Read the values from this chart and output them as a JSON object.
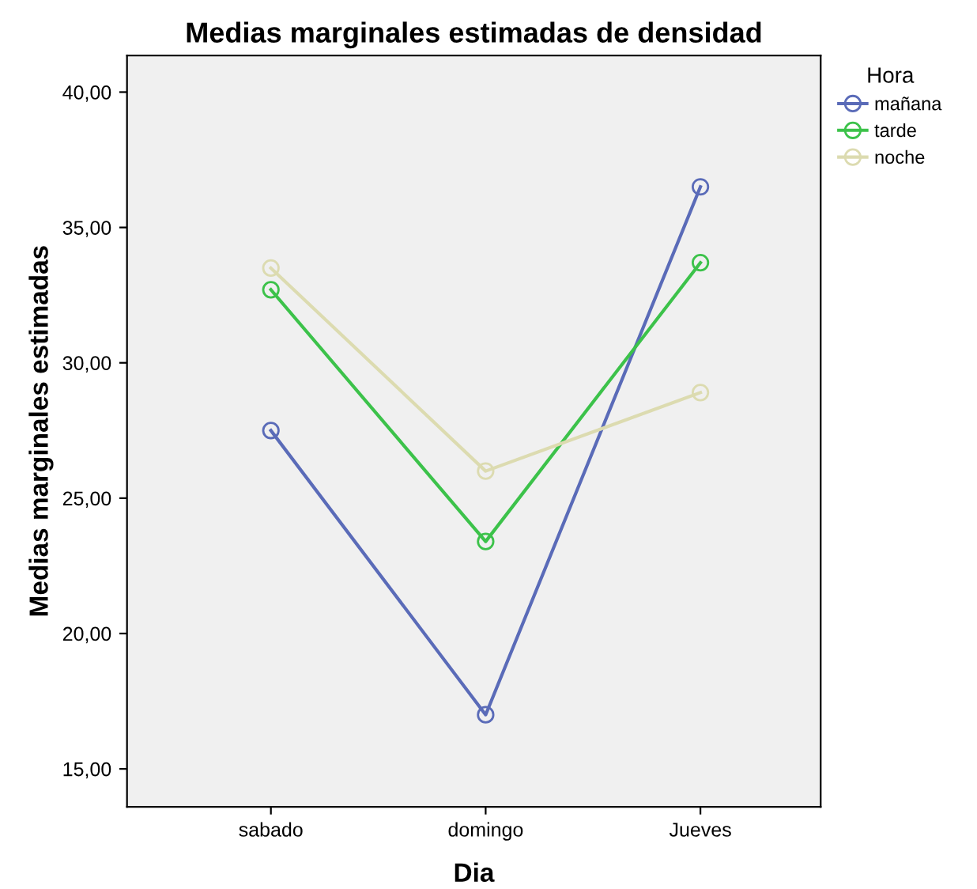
{
  "chart_data": {
    "type": "line",
    "title": "Medias marginales estimadas de densidad",
    "xlabel": "Dia",
    "ylabel": "Medias marginales estimadas",
    "legend_title": "Hora",
    "categories": [
      "sabado",
      "domingo",
      "Jueves"
    ],
    "series": [
      {
        "name": "mañana",
        "color": "#5a6bb8",
        "values": [
          27.5,
          17.0,
          36.5
        ]
      },
      {
        "name": "tarde",
        "color": "#3cc24a",
        "values": [
          32.7,
          23.4,
          33.7
        ]
      },
      {
        "name": "noche",
        "color": "#dcdbb0",
        "values": [
          33.5,
          26.0,
          28.9
        ]
      }
    ],
    "ylim": [
      13.6,
      41.35
    ],
    "yticks": [
      {
        "value": 15,
        "label": "15,00"
      },
      {
        "value": 20,
        "label": "20,00"
      },
      {
        "value": 25,
        "label": "25,00"
      },
      {
        "value": 30,
        "label": "30,00"
      },
      {
        "value": 35,
        "label": "35,00"
      },
      {
        "value": 40,
        "label": "40,00"
      }
    ],
    "grid": false,
    "legend": "top right",
    "marker": "circle",
    "line_style": "solid"
  }
}
